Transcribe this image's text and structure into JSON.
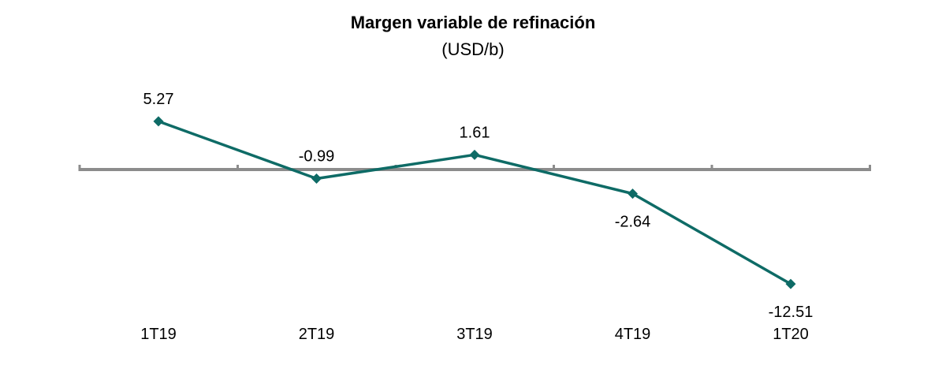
{
  "chart_data": {
    "type": "line",
    "title": "Margen variable de refinación",
    "subtitle": "(USD/b)",
    "categories": [
      "1T19",
      "2T19",
      "3T19",
      "4T19",
      "1T20"
    ],
    "series": [
      {
        "values": [
          5.27,
          -0.99,
          1.61,
          -2.64,
          -12.51
        ],
        "data_labels": [
          "5.27",
          "-0.99",
          "1.61",
          "-2.64",
          "-12.51"
        ],
        "color": "#0e6b66",
        "marker": "diamond"
      }
    ],
    "axis_color": "#8c8c8c",
    "ylim": [
      -12.51,
      5.27
    ],
    "grid": false,
    "legend": "none"
  }
}
